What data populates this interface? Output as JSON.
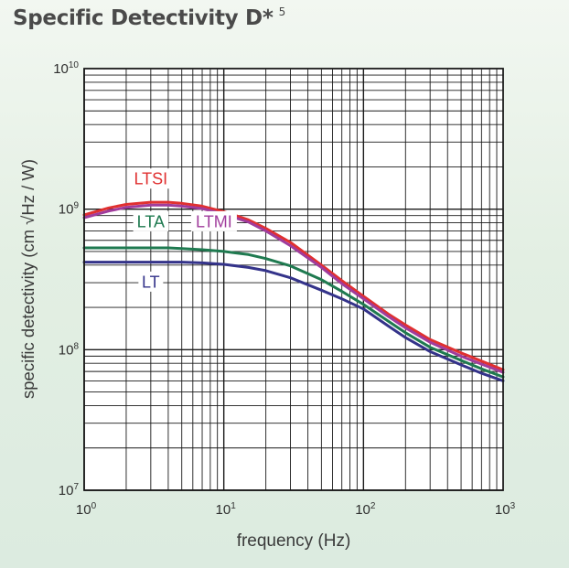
{
  "title": "Specific Detectivity D*",
  "title_footnote": "5",
  "chart_data": {
    "type": "line",
    "title": "Specific Detectivity D*",
    "xlabel": "frequency (Hz)",
    "ylabel": "specific detectivity (cm √Hz / W)",
    "x_scale": "log",
    "y_scale": "log",
    "xlim": [
      1,
      1000
    ],
    "ylim": [
      10000000,
      10000000000
    ],
    "grid": true,
    "x_ticks": [
      {
        "value": 1,
        "base": "10",
        "exp": "0"
      },
      {
        "value": 10,
        "base": "10",
        "exp": "1"
      },
      {
        "value": 100,
        "base": "10",
        "exp": "2"
      },
      {
        "value": 1000,
        "base": "10",
        "exp": "3"
      }
    ],
    "y_ticks": [
      {
        "value": 10000000,
        "base": "10",
        "exp": "7"
      },
      {
        "value": 100000000,
        "base": "10",
        "exp": "8"
      },
      {
        "value": 1000000000,
        "base": "10",
        "exp": "9"
      },
      {
        "value": 10000000000,
        "base": "10",
        "exp": "10"
      }
    ],
    "series": [
      {
        "name": "LTSI",
        "color": "#e03030",
        "x": [
          1,
          1.5,
          2,
          3,
          4,
          5,
          7,
          10,
          15,
          20,
          30,
          50,
          70,
          100,
          150,
          200,
          300,
          500,
          700,
          1000
        ],
        "y": [
          910000000,
          1020000000,
          1080000000,
          1120000000,
          1120000000,
          1100000000,
          1050000000,
          960000000,
          840000000,
          730000000,
          580000000,
          400000000,
          310000000,
          240000000,
          180000000,
          150000000,
          118000000,
          95000000,
          83000000,
          72000000
        ],
        "label": "LTSI",
        "label_x": 3,
        "label_y": 1650000000
      },
      {
        "name": "LTMI",
        "color": "#a03c9c",
        "x": [
          1,
          1.5,
          2,
          3,
          4,
          5,
          7,
          10,
          15,
          20,
          30,
          50,
          70,
          100,
          150,
          200,
          300,
          500,
          700,
          1000
        ],
        "y": [
          870000000,
          970000000,
          1030000000,
          1070000000,
          1070000000,
          1050000000,
          1010000000,
          920000000,
          810000000,
          700000000,
          550000000,
          385000000,
          295000000,
          230000000,
          173000000,
          143000000,
          113000000,
          90000000,
          79000000,
          69000000
        ],
        "label": "LTMI",
        "label_x": 8.5,
        "label_y": 820000000
      },
      {
        "name": "LTA",
        "color": "#1f7a50",
        "x": [
          1,
          1.5,
          2,
          3,
          4,
          5,
          7,
          10,
          15,
          20,
          30,
          50,
          70,
          100,
          150,
          200,
          300,
          500,
          700,
          1000
        ],
        "y": [
          530000000,
          530000000,
          530000000,
          530000000,
          530000000,
          525000000,
          515000000,
          500000000,
          475000000,
          445000000,
          395000000,
          315000000,
          260000000,
          210000000,
          160000000,
          132000000,
          104000000,
          84000000,
          73000000,
          64000000
        ],
        "label": "LTA",
        "label_x": 3,
        "label_y": 820000000
      },
      {
        "name": "LT",
        "color": "#34338a",
        "x": [
          1,
          1.5,
          2,
          3,
          4,
          5,
          7,
          10,
          15,
          20,
          30,
          50,
          70,
          100,
          150,
          200,
          300,
          500,
          700,
          1000
        ],
        "y": [
          420000000,
          420000000,
          420000000,
          420000000,
          420000000,
          420000000,
          415000000,
          405000000,
          385000000,
          365000000,
          325000000,
          265000000,
          230000000,
          195000000,
          148000000,
          122000000,
          97000000,
          78000000,
          68000000,
          60000000
        ],
        "label": "LT",
        "label_x": 3,
        "label_y": 305000000
      }
    ]
  }
}
